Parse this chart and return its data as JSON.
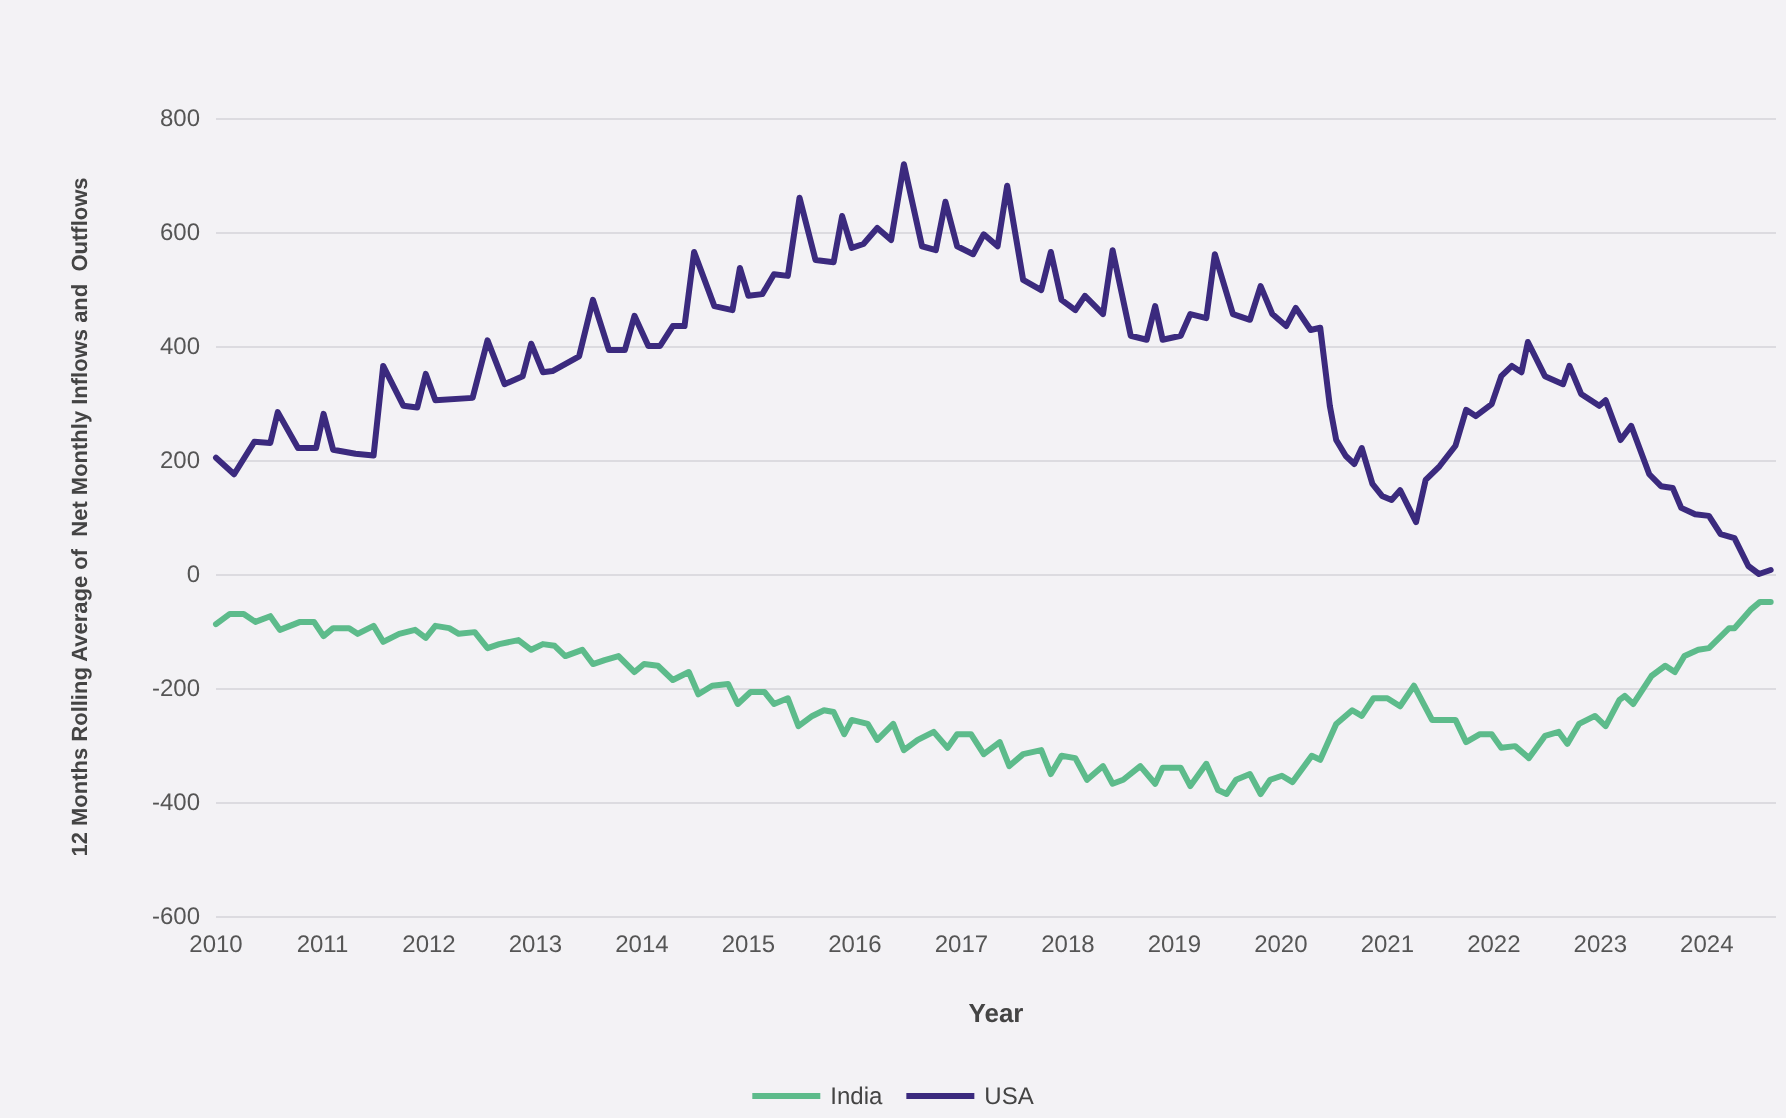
{
  "chart_data": {
    "type": "line",
    "xlabel": "Year",
    "ylabel": "12 Months Rolling Average of  Net Monthly Inflows and  Outflows",
    "xlim": [
      2010,
      2024.65
    ],
    "xticks": [
      2010,
      2011,
      2012,
      2013,
      2014,
      2015,
      2016,
      2017,
      2018,
      2019,
      2020,
      2021,
      2022,
      2023,
      2024
    ],
    "ylim": [
      -600,
      800
    ],
    "yticks": [
      -600,
      -400,
      -200,
      0,
      200,
      400,
      600,
      800
    ],
    "grid": "y",
    "legend": "bottom",
    "marker": "none",
    "line_style": "solid",
    "series": [
      {
        "name": "India",
        "color": "#5dbb8b",
        "x": [
          2010.0,
          2010.13,
          2010.26,
          2010.37,
          2010.51,
          2010.6,
          2010.79,
          2010.92,
          2011.01,
          2011.1,
          2011.25,
          2011.33,
          2011.48,
          2011.57,
          2011.72,
          2011.87,
          2011.97,
          2012.06,
          2012.19,
          2012.28,
          2012.43,
          2012.55,
          2012.66,
          2012.84,
          2012.96,
          2013.07,
          2013.18,
          2013.28,
          2013.44,
          2013.54,
          2013.65,
          2013.78,
          2013.93,
          2014.02,
          2014.15,
          2014.29,
          2014.44,
          2014.53,
          2014.66,
          2014.81,
          2014.9,
          2015.02,
          2015.15,
          2015.24,
          2015.37,
          2015.47,
          2015.6,
          2015.71,
          2015.8,
          2015.9,
          2015.97,
          2016.12,
          2016.21,
          2016.36,
          2016.46,
          2016.59,
          2016.74,
          2016.87,
          2016.96,
          2017.09,
          2017.21,
          2017.36,
          2017.45,
          2017.58,
          2017.75,
          2017.84,
          2017.94,
          2018.07,
          2018.18,
          2018.33,
          2018.42,
          2018.52,
          2018.68,
          2018.82,
          2018.89,
          2019.06,
          2019.15,
          2019.3,
          2019.41,
          2019.49,
          2019.58,
          2019.71,
          2019.81,
          2019.9,
          2020.01,
          2020.11,
          2020.29,
          2020.37,
          2020.52,
          2020.67,
          2020.76,
          2020.87,
          2021.0,
          2021.12,
          2021.25,
          2021.42,
          2021.64,
          2021.74,
          2021.87,
          2021.98,
          2022.07,
          2022.2,
          2022.33,
          2022.48,
          2022.61,
          2022.69,
          2022.8,
          2022.95,
          2023.05,
          2023.18,
          2023.23,
          2023.31,
          2023.48,
          2023.61,
          2023.7,
          2023.79,
          2023.92,
          2024.02,
          2024.21,
          2024.26,
          2024.41,
          2024.5,
          2024.6
        ],
        "values": [
          -88,
          -70,
          -70,
          -84,
          -74,
          -98,
          -84,
          -84,
          -109,
          -95,
          -95,
          -105,
          -91,
          -119,
          -105,
          -98,
          -112,
          -91,
          -95,
          -105,
          -102,
          -130,
          -123,
          -116,
          -133,
          -123,
          -126,
          -144,
          -133,
          -158,
          -151,
          -144,
          -172,
          -158,
          -161,
          -186,
          -172,
          -211,
          -196,
          -193,
          -228,
          -207,
          -207,
          -228,
          -218,
          -267,
          -249,
          -239,
          -242,
          -281,
          -256,
          -263,
          -291,
          -263,
          -309,
          -291,
          -277,
          -305,
          -281,
          -281,
          -316,
          -295,
          -337,
          -316,
          -309,
          -351,
          -319,
          -323,
          -361,
          -337,
          -368,
          -361,
          -337,
          -368,
          -340,
          -340,
          -372,
          -333,
          -379,
          -386,
          -361,
          -351,
          -386,
          -361,
          -354,
          -365,
          -319,
          -326,
          -263,
          -239,
          -249,
          -218,
          -218,
          -232,
          -196,
          -256,
          -256,
          -295,
          -281,
          -281,
          -305,
          -302,
          -323,
          -284,
          -277,
          -298,
          -263,
          -249,
          -267,
          -221,
          -214,
          -228,
          -179,
          -161,
          -172,
          -144,
          -133,
          -130,
          -95,
          -95,
          -63,
          -49,
          -49
        ]
      },
      {
        "name": "USA",
        "color": "#3b2a7e",
        "x": [
          2010.0,
          2010.17,
          2010.36,
          2010.51,
          2010.58,
          2010.77,
          2010.94,
          2011.01,
          2011.1,
          2011.31,
          2011.48,
          2011.57,
          2011.76,
          2011.89,
          2011.97,
          2012.06,
          2012.41,
          2012.55,
          2012.71,
          2012.88,
          2012.96,
          2013.07,
          2013.16,
          2013.41,
          2013.54,
          2013.69,
          2013.84,
          2013.93,
          2014.06,
          2014.17,
          2014.29,
          2014.4,
          2014.49,
          2014.68,
          2014.85,
          2014.92,
          2015.0,
          2015.13,
          2015.24,
          2015.37,
          2015.48,
          2015.63,
          2015.8,
          2015.88,
          2015.97,
          2016.08,
          2016.21,
          2016.34,
          2016.46,
          2016.63,
          2016.76,
          2016.85,
          2016.96,
          2017.11,
          2017.21,
          2017.34,
          2017.43,
          2017.58,
          2017.75,
          2017.84,
          2017.94,
          2018.07,
          2018.16,
          2018.33,
          2018.42,
          2018.59,
          2018.74,
          2018.82,
          2018.89,
          2019.06,
          2019.15,
          2019.3,
          2019.38,
          2019.55,
          2019.71,
          2019.81,
          2019.92,
          2020.05,
          2020.14,
          2020.28,
          2020.37,
          2020.46,
          2020.52,
          2020.61,
          2020.69,
          2020.76,
          2020.86,
          2020.95,
          2021.04,
          2021.12,
          2021.27,
          2021.36,
          2021.49,
          2021.64,
          2021.74,
          2021.83,
          2021.98,
          2022.07,
          2022.17,
          2022.26,
          2022.32,
          2022.48,
          2022.65,
          2022.71,
          2022.82,
          2022.99,
          2023.05,
          2023.19,
          2023.29,
          2023.46,
          2023.57,
          2023.68,
          2023.76,
          2023.89,
          2024.02,
          2024.13,
          2024.26,
          2024.39,
          2024.49,
          2024.6
        ],
        "values": [
          204,
          175,
          232,
          230,
          284,
          221,
          221,
          281,
          218,
          211,
          208,
          365,
          295,
          292,
          351,
          305,
          309,
          410,
          333,
          347,
          404,
          354,
          356,
          382,
          481,
          393,
          393,
          453,
          400,
          400,
          435,
          435,
          565,
          470,
          463,
          537,
          488,
          491,
          526,
          523,
          660,
          551,
          547,
          628,
          572,
          579,
          607,
          586,
          719,
          575,
          568,
          653,
          575,
          561,
          596,
          575,
          681,
          516,
          498,
          565,
          481,
          463,
          488,
          456,
          568,
          418,
          411,
          470,
          411,
          418,
          456,
          449,
          561,
          456,
          446,
          505,
          456,
          435,
          467,
          428,
          432,
          295,
          235,
          207,
          193,
          221,
          158,
          137,
          130,
          147,
          91,
          165,
          189,
          225,
          288,
          277,
          298,
          347,
          365,
          354,
          407,
          347,
          333,
          365,
          316,
          295,
          305,
          235,
          260,
          175,
          154,
          151,
          116,
          105,
          102,
          70,
          63,
          14,
          0,
          7
        ]
      }
    ]
  }
}
